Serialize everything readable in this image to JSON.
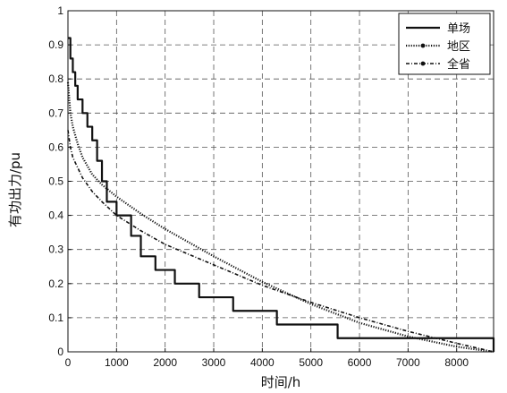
{
  "chart_data": {
    "type": "line",
    "xlabel": "时间/h",
    "ylabel": "有功出力/pu",
    "xlim": [
      0,
      8760
    ],
    "ylim": [
      0,
      1
    ],
    "xticks": [
      0,
      1000,
      2000,
      3000,
      4000,
      5000,
      6000,
      7000,
      8000
    ],
    "yticks": [
      0,
      0.1,
      0.2,
      0.3,
      0.4,
      0.5,
      0.6,
      0.7,
      0.8,
      0.9,
      1
    ],
    "xtick_labels": [
      "0",
      "1000",
      "2000",
      "3000",
      "4000",
      "5000",
      "6000",
      "7000",
      "8000"
    ],
    "ytick_labels": [
      "0",
      "0.1",
      "0.2",
      "0.3",
      "0.4",
      "0.5",
      "0.6",
      "0.7",
      "0.8",
      "0.9",
      "1"
    ],
    "grid": true,
    "legend_position": "top-right",
    "series": [
      {
        "name": "单场",
        "style": "solid",
        "step": true,
        "x": [
          0,
          50,
          100,
          150,
          200,
          300,
          400,
          500,
          600,
          700,
          800,
          1000,
          1300,
          1500,
          1800,
          2200,
          2700,
          3400,
          4300,
          5550,
          8760
        ],
        "y": [
          0.92,
          0.86,
          0.82,
          0.78,
          0.74,
          0.7,
          0.66,
          0.62,
          0.56,
          0.5,
          0.44,
          0.4,
          0.34,
          0.28,
          0.24,
          0.2,
          0.16,
          0.12,
          0.08,
          0.04,
          0.0
        ]
      },
      {
        "name": "地区",
        "style": "dotted",
        "x": [
          0,
          50,
          100,
          200,
          300,
          400,
          500,
          700,
          1000,
          1500,
          2000,
          3000,
          4000,
          5000,
          6000,
          7000,
          8000,
          8760
        ],
        "y": [
          0.79,
          0.7,
          0.66,
          0.61,
          0.57,
          0.545,
          0.52,
          0.49,
          0.455,
          0.405,
          0.36,
          0.28,
          0.205,
          0.14,
          0.085,
          0.045,
          0.015,
          0.0
        ]
      },
      {
        "name": "全省",
        "style": "dashdot",
        "x": [
          0,
          50,
          100,
          200,
          300,
          400,
          500,
          700,
          1000,
          1500,
          2000,
          3000,
          4000,
          5000,
          6000,
          7000,
          8000,
          8760
        ],
        "y": [
          0.65,
          0.6,
          0.57,
          0.54,
          0.51,
          0.49,
          0.47,
          0.44,
          0.4,
          0.355,
          0.315,
          0.255,
          0.195,
          0.145,
          0.1,
          0.06,
          0.025,
          0.0
        ]
      }
    ],
    "colors": {
      "line": "#111111",
      "grid": "#555555"
    }
  }
}
